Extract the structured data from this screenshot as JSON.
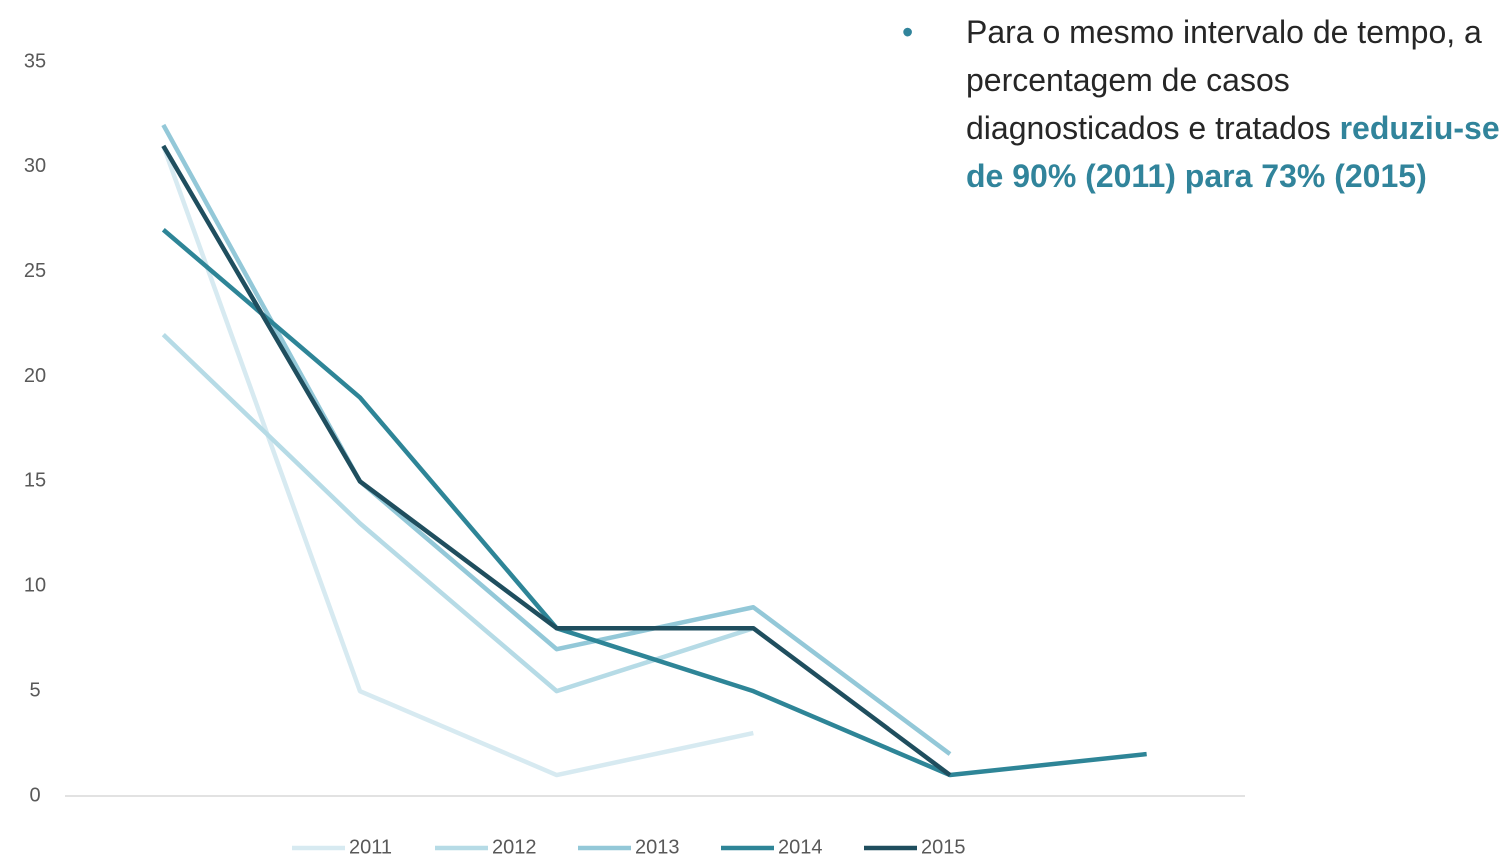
{
  "chart_data": {
    "type": "line",
    "categories": [
      null,
      null,
      null,
      null,
      null,
      null
    ],
    "series": [
      {
        "name": "2011",
        "color": "#d7eaf1",
        "values": [
          31,
          5,
          1,
          3,
          null,
          null
        ]
      },
      {
        "name": "2012",
        "color": "#b6dbe6",
        "values": [
          22,
          13,
          5,
          8,
          null,
          null
        ]
      },
      {
        "name": "2013",
        "color": "#93c8d8",
        "values": [
          32,
          15,
          7,
          9,
          2,
          null
        ]
      },
      {
        "name": "2014",
        "color": "#2e8597",
        "values": [
          27,
          19,
          8,
          5,
          1,
          2
        ]
      },
      {
        "name": "2015",
        "color": "#1f4e5e",
        "values": [
          31,
          15,
          8,
          8,
          1,
          null
        ]
      }
    ],
    "ylim": [
      0,
      35
    ],
    "yticks": [
      0,
      5,
      10,
      15,
      20,
      25,
      30,
      35
    ],
    "grid": false,
    "legend": "bottom",
    "annotation": {
      "text": "Para o mesmo intervalo de tempo, a percentagem de casos diagnosticados e tratados",
      "highlight": "reduziu-se de 90% (2011) para 73% (2015)",
      "highlight_color": "#31849b"
    }
  }
}
